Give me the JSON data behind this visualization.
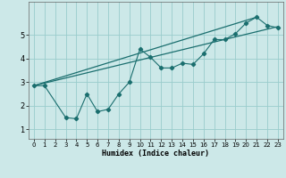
{
  "xlabel": "Humidex (Indice chaleur)",
  "xlim": [
    -0.5,
    23.5
  ],
  "ylim": [
    0.6,
    6.4
  ],
  "bg_color": "#cce8e8",
  "grid_color": "#99cccc",
  "line_color": "#1a6e6e",
  "scatter_x": [
    0,
    1,
    3,
    4,
    5,
    6,
    7,
    8,
    9,
    10,
    11,
    12,
    13,
    14,
    15,
    16,
    17,
    18,
    19,
    20,
    21,
    22,
    23
  ],
  "scatter_y": [
    2.85,
    2.85,
    1.5,
    1.45,
    2.5,
    1.75,
    1.85,
    2.5,
    3.0,
    4.4,
    4.05,
    3.6,
    3.6,
    3.8,
    3.75,
    4.2,
    4.8,
    4.8,
    5.05,
    5.5,
    5.75,
    5.4,
    5.3
  ],
  "trend1_x": [
    0,
    23
  ],
  "trend1_y": [
    2.85,
    5.35
  ],
  "trend2_x": [
    0,
    21
  ],
  "trend2_y": [
    2.85,
    5.75
  ],
  "yticks": [
    1,
    2,
    3,
    4,
    5
  ],
  "xticks": [
    0,
    1,
    2,
    3,
    4,
    5,
    6,
    7,
    8,
    9,
    10,
    11,
    12,
    13,
    14,
    15,
    16,
    17,
    18,
    19,
    20,
    21,
    22,
    23
  ]
}
